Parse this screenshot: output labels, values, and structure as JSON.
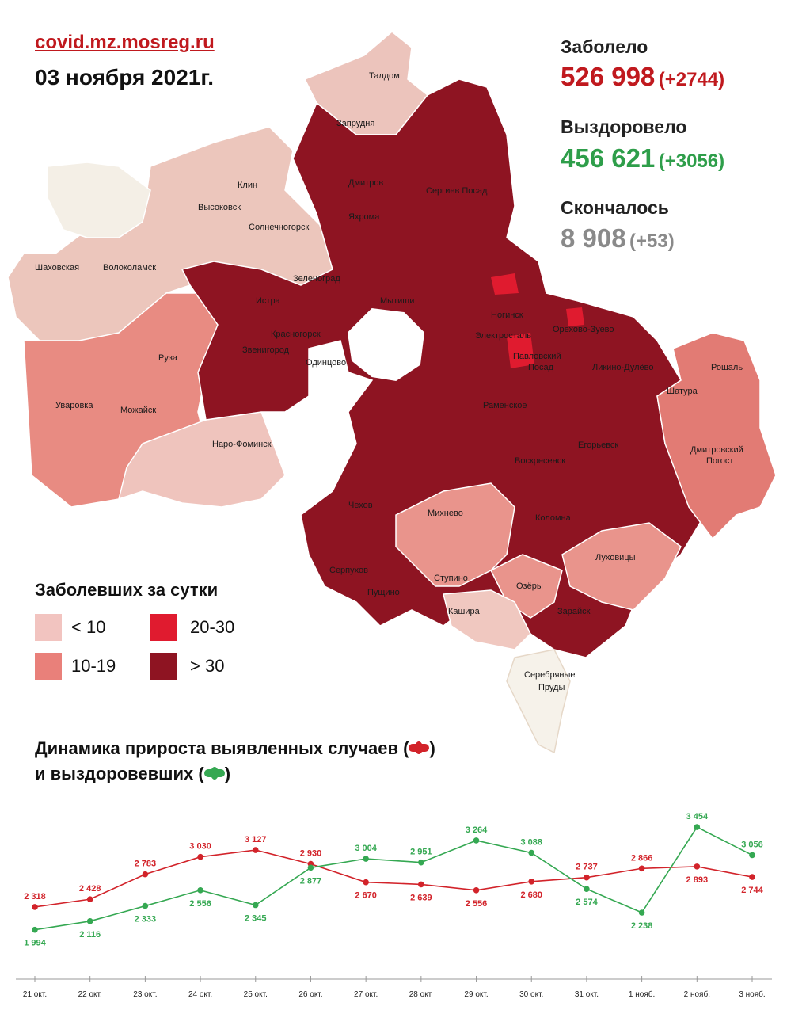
{
  "header": {
    "site": "covid.mz.mosreg.ru",
    "date": "03 ноября 2021г."
  },
  "stats": {
    "infected": {
      "label": "Заболело",
      "value": "526 998",
      "delta": "(+2744)",
      "color": "#c0191e"
    },
    "recovered": {
      "label": "Выздоровело",
      "value": "456 621",
      "delta": "(+3056)",
      "color": "#2e9e4a"
    },
    "deaths": {
      "label": "Скончалось",
      "value": "8 908",
      "delta": "(+53)",
      "color": "#8a8a8a"
    }
  },
  "map": {
    "towns": [
      "Талдом",
      "Запрудня",
      "Дмитров",
      "Сергиев Посад",
      "Яхрома",
      "Клин",
      "Высоковск",
      "Солнечногорск",
      "Шаховская",
      "Волоколамск",
      "Зеленоград",
      "Истра",
      "Мытищи",
      "Ногинск",
      "Электросталь",
      "Павловский",
      "Посад",
      "Орехово-Зуево",
      "Ликино-Дулёво",
      "Рошаль",
      "Шатура",
      "Красногорск",
      "Звенигород",
      "Одинцово",
      "Руза",
      "Уваровка",
      "Можайск",
      "Наро-Фоминск",
      "Раменское",
      "Егорьевск",
      "Воскресенск",
      "Дмитровский",
      "Погост",
      "Чехов",
      "Михнево",
      "Коломна",
      "Луховицы",
      "Серпухов",
      "Пущино",
      "Ступино",
      "Озёры",
      "Кашира",
      "Зарайск",
      "Серебряные",
      "Пруды"
    ]
  },
  "legend": {
    "title": "Заболевших за сутки",
    "items": [
      {
        "label": "< 10",
        "color": "#f2c4c0"
      },
      {
        "label": "20-30",
        "color": "#e01b2f"
      },
      {
        "label": "10-19",
        "color": "#e9807a"
      },
      {
        "label": "> 30",
        "color": "#8e1422"
      }
    ]
  },
  "chart_title": {
    "line1": "Динамика прироста выявленных случаев (",
    "line1_end": ")",
    "line2": "и выздоровевших (",
    "line2_end": ")"
  },
  "chart_data": {
    "type": "line",
    "x": [
      "21 окт.",
      "22 окт.",
      "23 окт.",
      "24 окт.",
      "25 окт.",
      "26 окт.",
      "27 окт.",
      "28 окт.",
      "29 окт.",
      "30 окт.",
      "31 окт.",
      "1 нояб.",
      "2 нояб.",
      "3 нояб."
    ],
    "series": [
      {
        "name": "выявленных случаев",
        "color": "#d2232a",
        "values": [
          2318,
          2428,
          2783,
          3030,
          3127,
          2930,
          2670,
          2639,
          2556,
          2680,
          2737,
          2866,
          2893,
          2744
        ],
        "labels": [
          "2 318",
          "2 428",
          "2 783",
          "3 030",
          "3 127",
          "2 930",
          "2 670",
          "2 639",
          "2 556",
          "2 680",
          "2 737",
          "2 866",
          "2 893",
          "2 744"
        ]
      },
      {
        "name": "выздоровевших",
        "color": "#35a852",
        "values": [
          1994,
          2116,
          2333,
          2556,
          2345,
          2877,
          3004,
          2951,
          3264,
          3088,
          2574,
          2238,
          3454,
          3056
        ],
        "labels": [
          "1 994",
          "2 116",
          "2 333",
          "2 556",
          "2 345",
          "2 877",
          "3 004",
          "2 951",
          "3 264",
          "3 088",
          "2 574",
          "2 238",
          "3 454",
          "3 056"
        ]
      }
    ]
  }
}
